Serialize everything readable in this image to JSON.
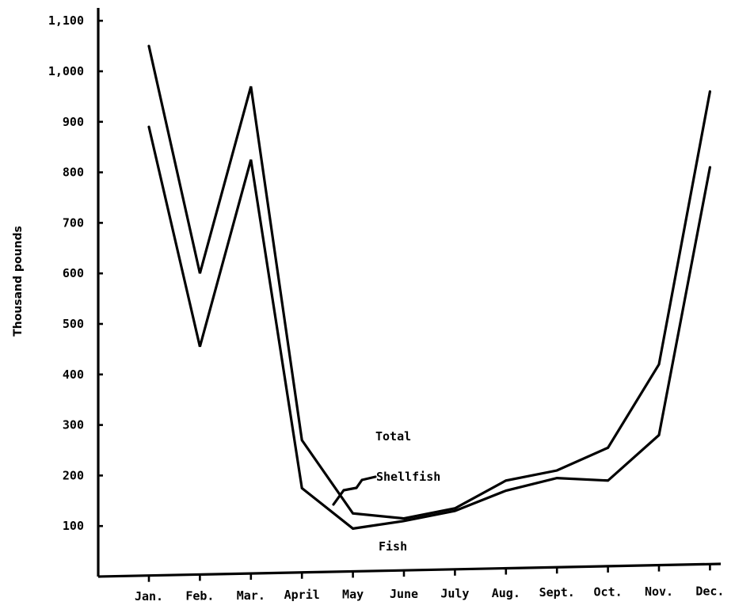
{
  "chart_data": {
    "type": "line",
    "categories": [
      "Jan.",
      "Feb.",
      "Mar.",
      "April",
      "May",
      "June",
      "July",
      "Aug.",
      "Sept.",
      "Oct.",
      "Nov.",
      "Dec."
    ],
    "ylabel": "Thousand pounds",
    "ylim": [
      0,
      1100
    ],
    "yticks": [
      100,
      200,
      300,
      400,
      500,
      600,
      700,
      800,
      900,
      1000,
      1100
    ],
    "ytick_labels": [
      "100",
      "200",
      "300",
      "400",
      "500",
      "600",
      "700",
      "800",
      "900",
      "1,000",
      "1,100"
    ],
    "series": [
      {
        "name": "Total",
        "values": [
          1050,
          600,
          970,
          270,
          125,
          115,
          135,
          190,
          210,
          255,
          420,
          960
        ]
      },
      {
        "name": "Fish",
        "values": [
          890,
          455,
          825,
          175,
          95,
          110,
          130,
          170,
          195,
          190,
          280,
          810
        ]
      }
    ],
    "annotations": [
      "Total",
      "Shellfish",
      "Fish"
    ],
    "grid": false,
    "legend": "none"
  }
}
